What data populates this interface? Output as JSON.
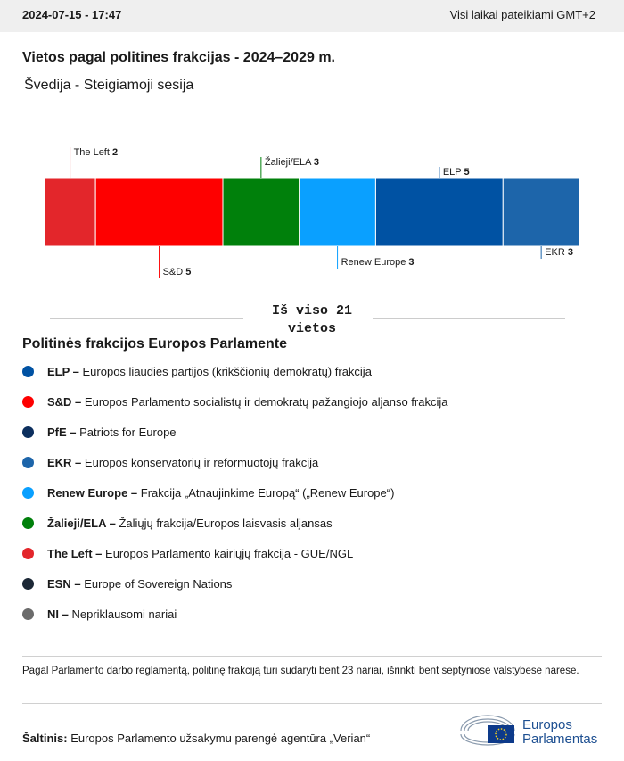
{
  "header": {
    "datetime": "2024-07-15 - 17:47",
    "timezone": "Visi laikai pateikiami GMT+2"
  },
  "title": "Vietos pagal politines frakcijas - 2024–2029 m.",
  "subtitle": "Švedija - Steigiamoji sesija",
  "chart_data": {
    "type": "stacked-bar",
    "series": [
      {
        "name": "The Left",
        "color": "#e3262b",
        "values": [
          2
        ]
      },
      {
        "name": "S&D",
        "color": "#fe0000",
        "values": [
          5
        ]
      },
      {
        "name": "Žalieji/ELA",
        "color": "#00800b",
        "values": [
          3
        ]
      },
      {
        "name": "Renew Europe",
        "color": "#0aa0ff",
        "values": [
          3
        ]
      },
      {
        "name": "ELP",
        "color": "#0052a3",
        "values": [
          5
        ]
      },
      {
        "name": "EKR",
        "color": "#1d65aa",
        "values": [
          3
        ]
      }
    ],
    "total_label": "Iš viso 21 vietos"
  },
  "legend": {
    "title": "Politinės frakcijos Europos Parlamente",
    "items": [
      {
        "abbr": "ELP –",
        "description": "Europos liaudies partijos (krikščionių demokratų) frakcija",
        "color": "#0052a3"
      },
      {
        "abbr": "S&D –",
        "description": "Europos Parlamento socialistų ir demokratų pažangiojo aljanso frakcija",
        "color": "#fe0000"
      },
      {
        "abbr": "PfE –",
        "description": "Patriots for Europe",
        "color": "#0c2f5e"
      },
      {
        "abbr": "EKR –",
        "description": "Europos konservatorių ir reformuotojų frakcija",
        "color": "#1d65aa"
      },
      {
        "abbr": "Renew Europe –",
        "description": "Frakcija „Atnaujinkime Europą“ („Renew Europe“)",
        "color": "#0aa0ff"
      },
      {
        "abbr": "Žalieji/ELA –",
        "description": "Žaliųjų frakcija/Europos laisvasis aljansas",
        "color": "#00800b"
      },
      {
        "abbr": "The Left –",
        "description": "Europos Parlamento kairiųjų frakcija - GUE/NGL",
        "color": "#e3262b"
      },
      {
        "abbr": "ESN –",
        "description": "Europe of Sovereign Nations",
        "color": "#1c2836"
      },
      {
        "abbr": "NI –",
        "description": "Nepriklausomi nariai",
        "color": "#6b6b6b"
      }
    ]
  },
  "footnote": "Pagal Parlamento darbo reglamentą, politinę frakciją turi sudaryti bent 23 nariai, išrinkti bent septyniose valstybėse narėse.",
  "source": {
    "label": "Šaltinis:",
    "text": "Europos Parlamento užsakymu parengė agentūra „Verian“"
  },
  "logo": {
    "lines": [
      "Europos",
      "Parlamentas"
    ]
  }
}
